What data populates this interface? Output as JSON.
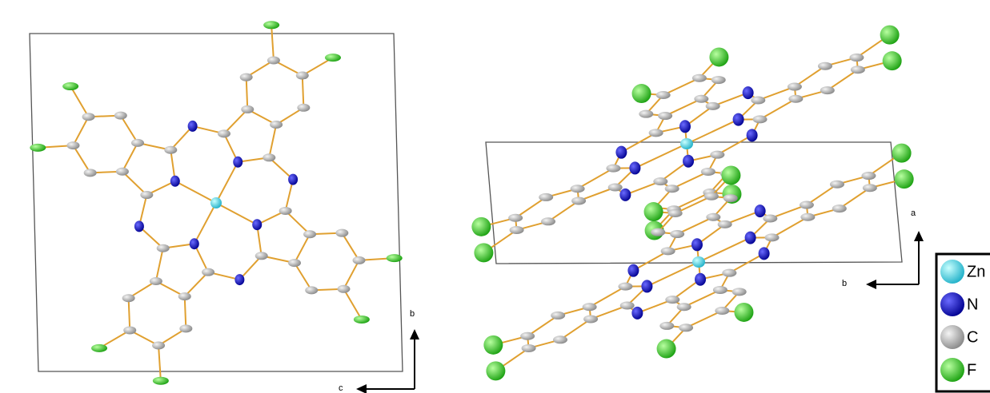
{
  "axes_left": {
    "vertical": "b",
    "horizontal": "c"
  },
  "axes_right": {
    "vertical": "a",
    "horizontal": "b"
  },
  "legend": [
    "Zn",
    "N",
    "C",
    "F"
  ]
}
